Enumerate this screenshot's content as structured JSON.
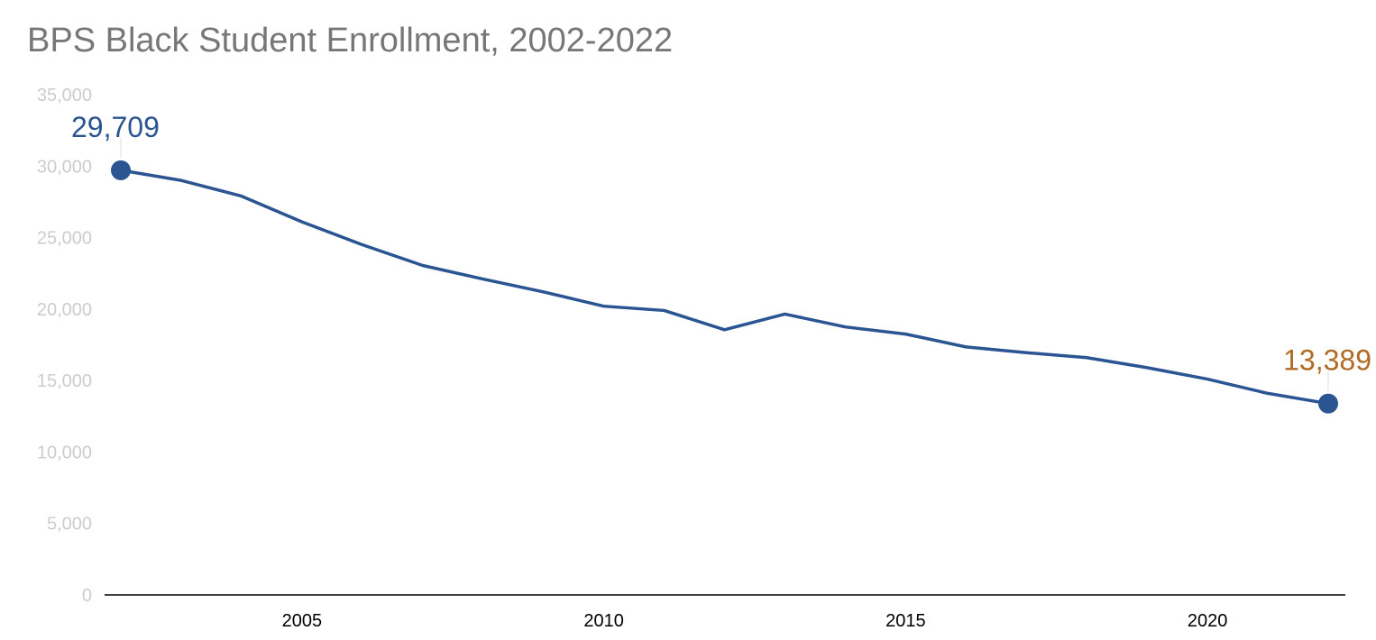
{
  "title": "BPS Black Student Enrollment, 2002-2022",
  "colors": {
    "line": "#2a5592",
    "start_label": "#2a5592",
    "end_label": "#b06a24",
    "y_tick": "#cccccc",
    "x_tick": "#000000",
    "axis": "#000000",
    "title": "#777777"
  },
  "chart_data": {
    "type": "line",
    "title": "BPS Black Student Enrollment, 2002-2022",
    "xlabel": "",
    "ylabel": "",
    "x": [
      2002,
      2003,
      2004,
      2005,
      2006,
      2007,
      2008,
      2009,
      2010,
      2011,
      2012,
      2013,
      2014,
      2015,
      2016,
      2017,
      2018,
      2019,
      2020,
      2021,
      2022
    ],
    "values": [
      29709,
      29000,
      27900,
      26100,
      24500,
      23050,
      22100,
      21200,
      20200,
      19900,
      18550,
      19650,
      18750,
      18250,
      17350,
      16950,
      16600,
      15900,
      15100,
      14100,
      13389
    ],
    "ylim": [
      0,
      35000
    ],
    "xlim": [
      2002,
      2022
    ],
    "y_ticks": [
      0,
      5000,
      10000,
      15000,
      20000,
      25000,
      30000,
      35000
    ],
    "y_tick_labels": [
      "0",
      "5,000",
      "10,000",
      "15,000",
      "20,000",
      "25,000",
      "30,000",
      "35,000"
    ],
    "x_ticks": [
      2005,
      2010,
      2015,
      2020
    ],
    "x_tick_labels": [
      "2005",
      "2010",
      "2015",
      "2020"
    ],
    "annotations": [
      {
        "x": 2002,
        "y": 29709,
        "label": "29,709",
        "color": "#2a5592"
      },
      {
        "x": 2022,
        "y": 13389,
        "label": "13,389",
        "color": "#b06a24"
      }
    ],
    "grid": false,
    "legend": "none"
  }
}
